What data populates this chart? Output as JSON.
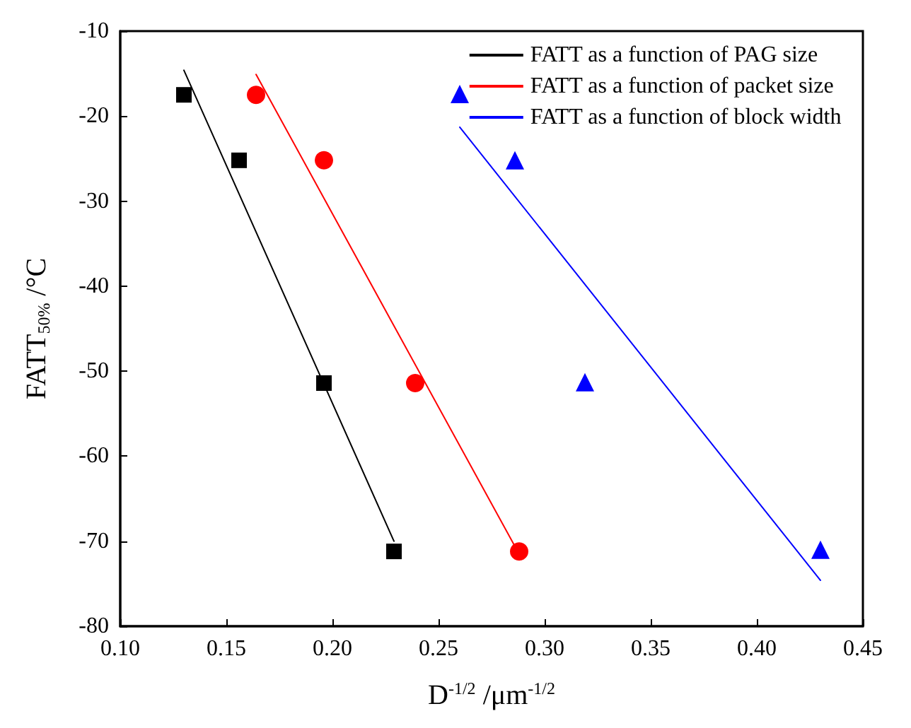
{
  "chart_data": {
    "type": "scatter",
    "xlabel": "D$^{-1/2}$ /μm$^{-1/2}$",
    "ylabel": "FATT$_{50%}$ /°C",
    "xlim": [
      0.1,
      0.45
    ],
    "xticks": [
      {
        "value": 0.1,
        "label": "0.10"
      },
      0.15,
      {
        "value": 0.2,
        "label": "0.20"
      },
      0.25,
      {
        "value": 0.3,
        "label": "0.30"
      },
      0.35,
      {
        "value": 0.4,
        "label": "0.40"
      },
      0.45
    ],
    "ylim": [
      -80,
      -10
    ],
    "yticks": [
      -80,
      -70,
      -60,
      -50,
      -40,
      -30,
      -20,
      -10
    ],
    "grid": false,
    "legend": "top right",
    "series": [
      {
        "marker": "square",
        "color": "#000000",
        "x": [
          0.13,
          0.156,
          0.196,
          0.229
        ],
        "values": [
          -17.5,
          -25.2,
          -51.4,
          -71.2
        ]
      },
      {
        "marker": "circle",
        "color": "#ff0000",
        "x": [
          0.164,
          0.196,
          0.239,
          0.288
        ],
        "values": [
          -17.5,
          -25.2,
          -51.4,
          -71.2
        ]
      },
      {
        "marker": "triangle",
        "color": "#0000ff",
        "x": [
          0.26,
          0.286,
          0.319,
          0.43
        ],
        "values": [
          -17.4,
          -25.2,
          -51.3,
          -71.0
        ]
      },
      {
        "type": "line",
        "name": "FATT as a function of PAG size",
        "marker": "none",
        "line_style": "solid",
        "color": "#000000",
        "x": [
          0.13,
          0.229
        ],
        "values": [
          -14.6,
          -70.0
        ]
      },
      {
        "type": "line",
        "name": "FATT as a function of packet size",
        "marker": "none",
        "line_style": "solid",
        "color": "#ff0000",
        "x": [
          0.164,
          0.286
        ],
        "values": [
          -15.1,
          -70.6
        ]
      },
      {
        "type": "line",
        "name": "FATT as a function of block width",
        "marker": "none",
        "line_style": "solid",
        "color": "#0000ff",
        "x": [
          0.26,
          0.43
        ],
        "values": [
          -21.3,
          -74.6
        ]
      }
    ]
  }
}
